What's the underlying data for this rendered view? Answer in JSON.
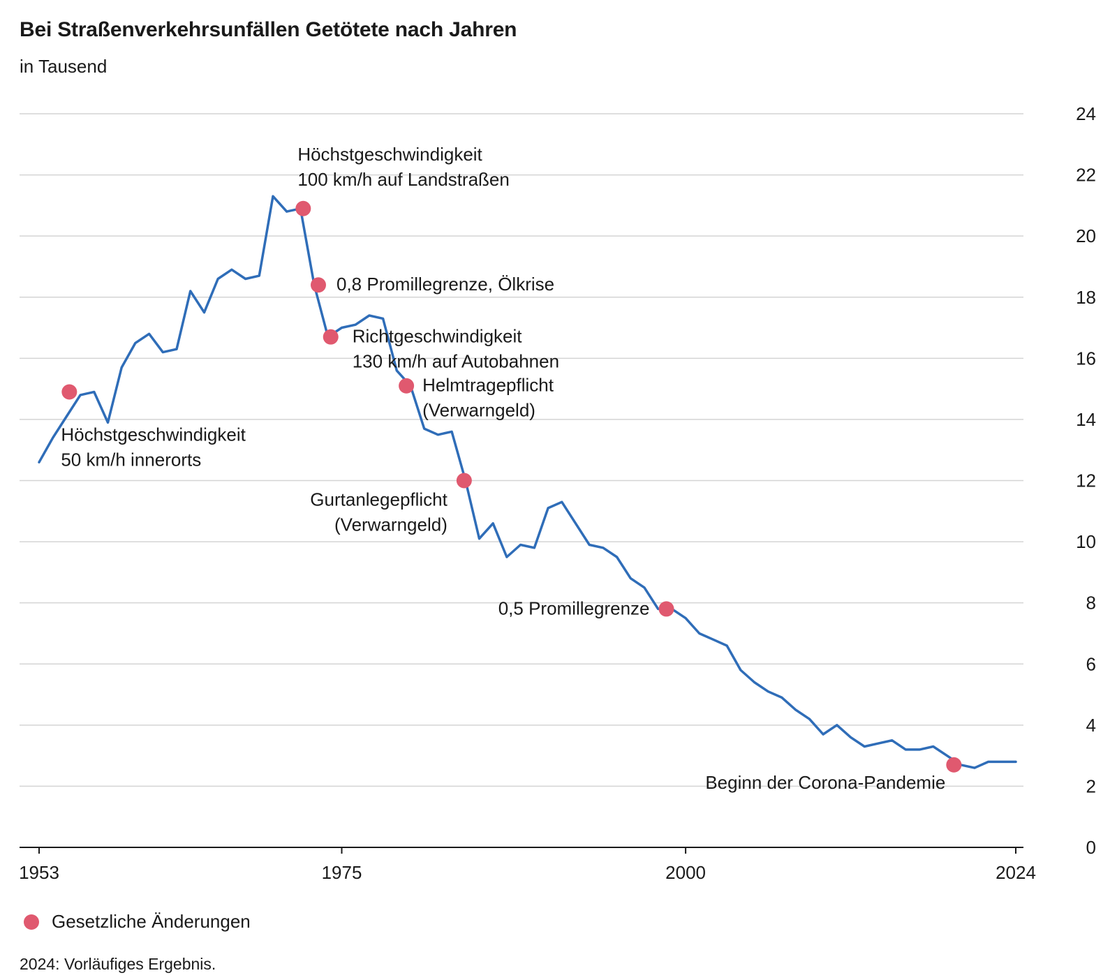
{
  "header": {
    "title": "Bei Straßenverkehrsunfällen Getötete nach Jahren",
    "subtitle": "in Tausend"
  },
  "legend": {
    "label": "Gesetzliche Änderungen"
  },
  "footnote": "2024: Vorläufiges Ergebnis.",
  "colors": {
    "line": "#2f6db8",
    "marker": "#e0596f",
    "grid": "#d4d4d4",
    "axis": "#1a1a1a"
  },
  "chart_data": {
    "type": "line",
    "title": "Bei Straßenverkehrsunfällen Getötete nach Jahren",
    "subtitle": "in Tausend",
    "xlabel": "",
    "ylabel": "",
    "xlim": [
      1953,
      2024
    ],
    "ylim": [
      0,
      24
    ],
    "x_ticks": [
      1953,
      1975,
      2000,
      2024
    ],
    "y_ticks": [
      0,
      2,
      4,
      6,
      8,
      10,
      12,
      14,
      16,
      18,
      20,
      22,
      24
    ],
    "y_axis_position": "right",
    "grid": true,
    "legend_position": "bottom-left",
    "series": [
      {
        "x": [
          1953,
          1954,
          1955,
          1956,
          1957,
          1958,
          1959,
          1960,
          1961,
          1962,
          1963,
          1964,
          1965,
          1966,
          1967,
          1968,
          1969,
          1970,
          1971,
          1972,
          1973,
          1974,
          1975,
          1976,
          1977,
          1978,
          1979,
          1980,
          1981,
          1982,
          1983,
          1984,
          1985,
          1986,
          1987,
          1988,
          1989,
          1990,
          1991,
          1992,
          1993,
          1994,
          1995,
          1996,
          1997,
          1998,
          1999,
          2000,
          2001,
          2002,
          2003,
          2004,
          2005,
          2006,
          2007,
          2008,
          2009,
          2010,
          2011,
          2012,
          2013,
          2014,
          2015,
          2016,
          2017,
          2018,
          2019,
          2020,
          2021,
          2022,
          2023,
          2024
        ],
        "values": [
          12.6,
          13.4,
          14.1,
          14.8,
          14.9,
          13.9,
          15.7,
          16.5,
          16.8,
          16.2,
          16.3,
          18.2,
          17.5,
          18.6,
          18.9,
          18.6,
          18.7,
          21.3,
          20.8,
          20.9,
          18.4,
          16.7,
          17.0,
          17.1,
          17.4,
          17.3,
          15.6,
          15.1,
          13.7,
          13.5,
          13.6,
          12.0,
          10.1,
          10.6,
          9.5,
          9.9,
          9.8,
          11.1,
          11.3,
          10.6,
          9.9,
          9.8,
          9.5,
          8.8,
          8.5,
          7.8,
          7.8,
          7.5,
          7.0,
          6.8,
          6.6,
          5.8,
          5.4,
          5.1,
          4.9,
          4.5,
          4.2,
          3.7,
          4.0,
          3.6,
          3.3,
          3.4,
          3.5,
          3.2,
          3.2,
          3.3,
          3.0,
          2.7,
          2.6,
          2.8,
          2.8,
          2.8
        ]
      }
    ],
    "annotations": [
      {
        "x": 1957,
        "y": 14.9,
        "text": [
          "Höchstgeschwindigkeit",
          "50 km/h innerorts"
        ]
      },
      {
        "x": 1972,
        "y": 20.9,
        "text": [
          "Höchstgeschwindigkeit",
          "100 km/h auf Landstraßen"
        ]
      },
      {
        "x": 1973,
        "y": 18.4,
        "text": [
          "0,8 Promillegrenze, Ölkrise"
        ]
      },
      {
        "x": 1974,
        "y": 16.7,
        "text": [
          "Richtgeschwindigkeit",
          "130 km/h auf Autobahnen"
        ]
      },
      {
        "x": 1980,
        "y": 15.1,
        "text": [
          "Helmtragepflicht",
          "(Verwarngeld)"
        ]
      },
      {
        "x": 1984,
        "y": 12.0,
        "text": [
          "Gurtanlegepflicht",
          "(Verwarngeld)"
        ]
      },
      {
        "x": 1998,
        "y": 7.8,
        "text": [
          "0,5 Promillegrenze"
        ]
      },
      {
        "x": 2020,
        "y": 2.7,
        "text": [
          "Beginn der Corona-Pandemie"
        ]
      }
    ]
  }
}
